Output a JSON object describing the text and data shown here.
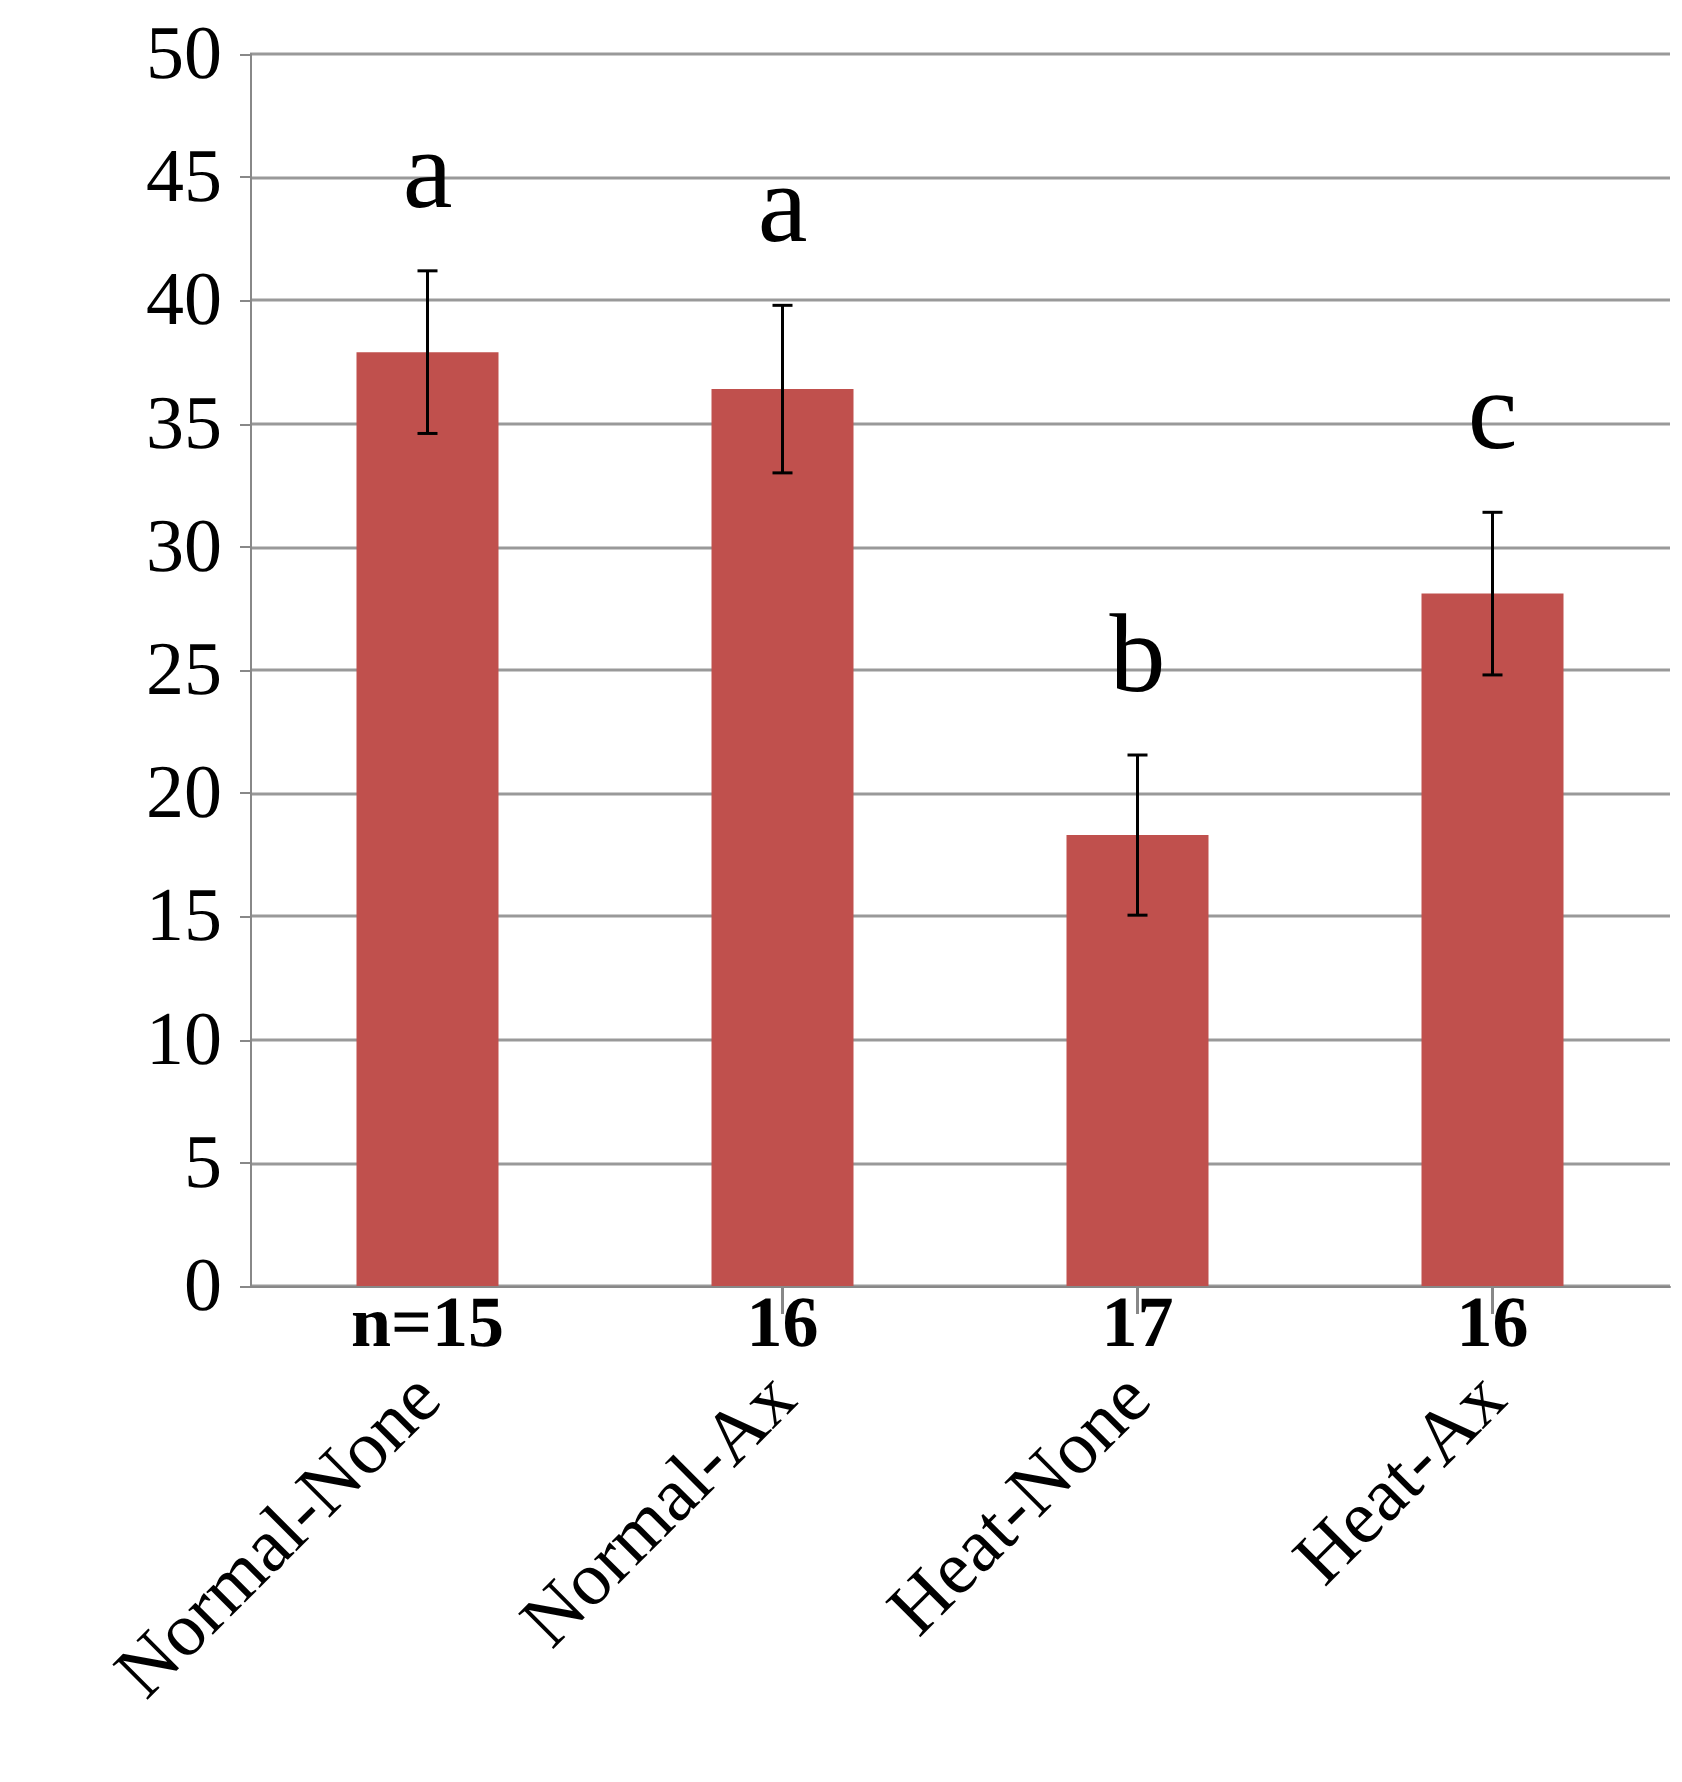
{
  "chart_data": {
    "type": "bar",
    "categories": [
      "Normal-None",
      "Normal-Ax",
      "Heat-None",
      "Heat-Ax"
    ],
    "series": [
      {
        "color": "#c0504d",
        "values": [
          37.9,
          36.4,
          18.3,
          28.1
        ],
        "errors": [
          3.3,
          3.4,
          3.25,
          3.3
        ]
      }
    ],
    "ylim": [
      0,
      50
    ],
    "yticks": [
      0,
      5,
      10,
      15,
      20,
      25,
      30,
      35,
      40,
      45,
      50
    ],
    "grid": "y",
    "annotations": [
      "a",
      "a",
      "b",
      "c",
      "n=15",
      "16",
      "17",
      "16"
    ]
  }
}
